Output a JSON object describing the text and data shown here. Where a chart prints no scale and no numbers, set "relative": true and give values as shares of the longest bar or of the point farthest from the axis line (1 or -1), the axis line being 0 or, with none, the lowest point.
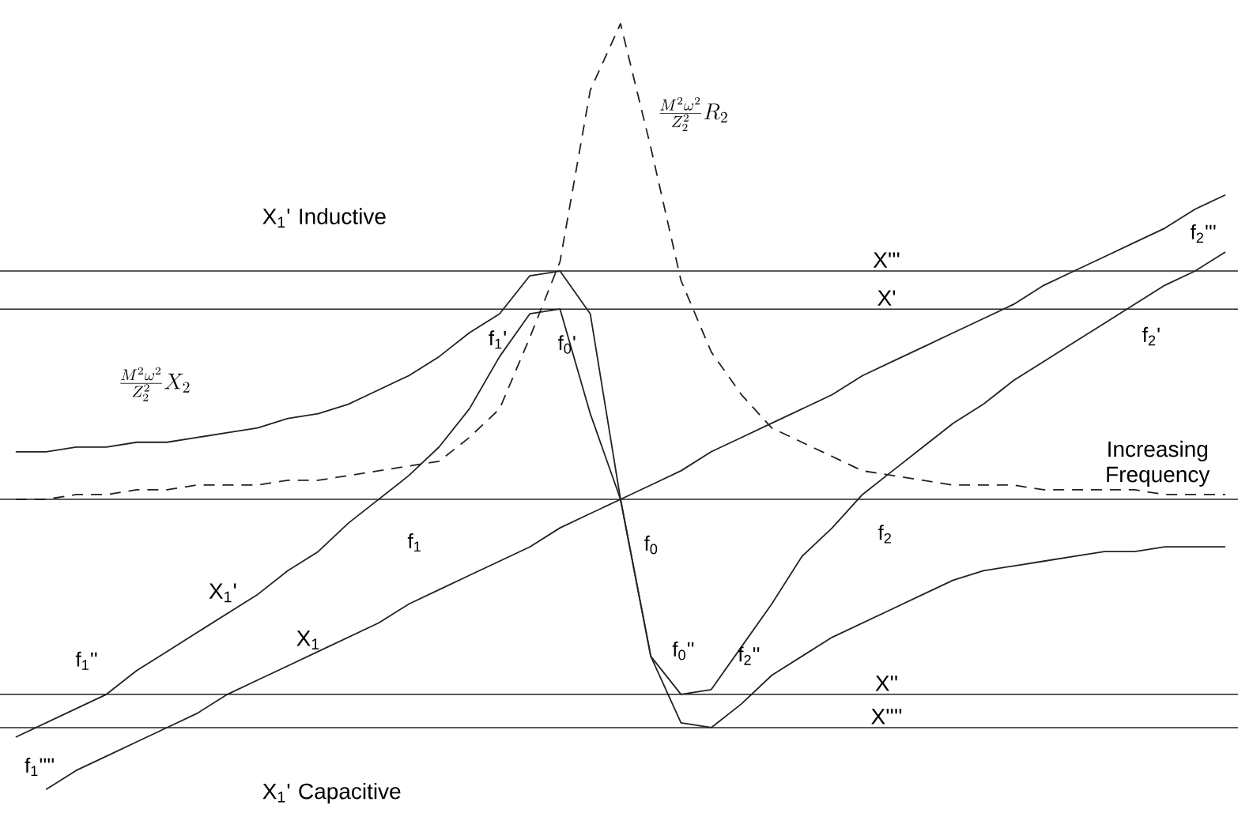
{
  "chart_data": {
    "type": "line",
    "relative": true,
    "tick_labels": false,
    "categories": [
      null,
      null,
      null,
      null,
      null,
      null,
      null,
      null,
      null,
      null,
      null,
      null,
      null,
      null,
      null,
      null,
      null,
      null,
      null,
      null,
      null,
      null,
      null,
      null,
      null,
      null,
      null,
      null,
      null,
      null,
      null,
      null,
      null,
      null,
      null,
      null,
      null,
      null,
      null,
      null,
      null
    ],
    "annotations": [
      "X$_{1}$' Inductive",
      "X$_{1}$' Capacitive",
      "Increasing Frequency",
      "f$_{1}$",
      "f$_{0}$",
      "f$_{2}$",
      "f$_{1}$'",
      "f$_{0}$'",
      "f$_{1}$''",
      "f$_{1}$''''",
      "f$_{0}$''",
      "f$_{2}$''",
      "f$_{2}$'",
      "f$_{2}$'''"
    ],
    "ref_lines": [
      {
        "axis": "y",
        "value": 0.48,
        "label": "X'''"
      },
      {
        "axis": "y",
        "value": 0.4,
        "label": "X'"
      },
      {
        "axis": "y",
        "value": -0.41,
        "label": "X''"
      },
      {
        "axis": "y",
        "value": -0.48,
        "label": "X''''"
      }
    ],
    "series": [
      {
        "name": "X$_{1}$",
        "color": "#222222",
        "values": [
          null,
          -0.61,
          -0.57,
          -0.54,
          -0.51,
          -0.48,
          -0.45,
          -0.41,
          -0.38,
          -0.35,
          -0.32,
          -0.29,
          -0.26,
          -0.22,
          -0.19,
          -0.16,
          -0.13,
          -0.1,
          -0.06,
          -0.03,
          0,
          0.03,
          0.06,
          0.1,
          0.13,
          0.16,
          0.19,
          0.22,
          0.26,
          0.29,
          0.32,
          0.35,
          0.38,
          0.41,
          0.45,
          0.48,
          0.51,
          0.54,
          0.57,
          0.61,
          0.64
        ]
      },
      {
        "name": "X$_{1}$'",
        "color": "#222222",
        "values": [
          -0.5,
          -0.47,
          -0.44,
          -0.41,
          -0.36,
          -0.32,
          -0.28,
          -0.24,
          -0.2,
          -0.15,
          -0.11,
          -0.05,
          0,
          0.05,
          0.11,
          0.19,
          0.3,
          0.39,
          0.4,
          0.18,
          0,
          -0.33,
          -0.41,
          -0.4,
          -0.31,
          -0.22,
          -0.12,
          -0.06,
          0.01,
          0.06,
          0.11,
          0.16,
          0.2,
          0.25,
          0.29,
          0.33,
          0.37,
          0.41,
          0.45,
          0.48,
          0.52
        ]
      },
      {
        "name": "\\frac{M^{2}\\omega^{2}}{Z_{2}^{2}}X_{2}",
        "color": "#222222",
        "values": [
          0.1,
          0.1,
          0.11,
          0.11,
          0.12,
          0.12,
          0.13,
          0.14,
          0.15,
          0.17,
          0.18,
          0.2,
          0.23,
          0.26,
          0.3,
          0.35,
          0.39,
          0.47,
          0.48,
          0.39,
          0,
          -0.33,
          -0.47,
          -0.48,
          -0.43,
          -0.37,
          -0.33,
          -0.29,
          -0.26,
          -0.23,
          -0.2,
          -0.17,
          -0.15,
          -0.14,
          -0.13,
          -0.12,
          -0.11,
          -0.11,
          -0.1,
          -0.1,
          -0.1
        ]
      },
      {
        "name": "\\frac{M^{2}\\omega^{2}}{Z_{2}^{2}}R_{2}",
        "color": "#222222",
        "line_style": "dashed",
        "values": [
          0,
          0,
          0.01,
          0.01,
          0.02,
          0.02,
          0.03,
          0.03,
          0.03,
          0.04,
          0.04,
          0.05,
          0.06,
          0.07,
          0.08,
          0.13,
          0.19,
          0.34,
          0.5,
          0.86,
          1,
          0.74,
          0.46,
          0.31,
          0.22,
          0.15,
          0.12,
          0.09,
          0.06,
          0.05,
          0.04,
          0.03,
          0.03,
          0.03,
          0.02,
          0.02,
          0.02,
          0.02,
          0.01,
          0.01,
          0.01
        ]
      }
    ]
  }
}
